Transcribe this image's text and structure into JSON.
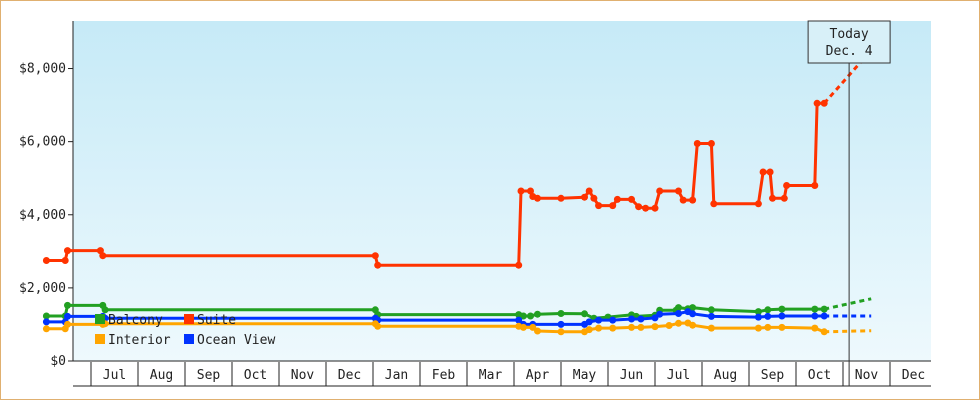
{
  "chart_data": {
    "type": "line",
    "ylim": [
      0,
      9300
    ],
    "y_ticks": [
      {
        "value": 0,
        "label": "$0"
      },
      {
        "value": 2000,
        "label": "$2,000"
      },
      {
        "value": 4000,
        "label": "$4,000"
      },
      {
        "value": 6000,
        "label": "$6,000"
      },
      {
        "value": 8000,
        "label": "$8,000"
      }
    ],
    "months": [
      "Jul",
      "Aug",
      "Sep",
      "Oct",
      "Nov",
      "Dec",
      "Jan",
      "Feb",
      "Mar",
      "Apr",
      "May",
      "Jun",
      "Jul",
      "Aug",
      "Sep",
      "Oct",
      "Nov",
      "Dec"
    ],
    "x_unit": "months since start of first month shown (Jun)",
    "today": {
      "line1": "Today",
      "line2": "Dec. 4",
      "x": 17.13
    },
    "legend": [
      {
        "name": "Balcony",
        "color": "#22a022"
      },
      {
        "name": "Suite",
        "color": "#ff3300"
      },
      {
        "name": "Interior",
        "color": "#ffa500"
      },
      {
        "name": "Ocean View",
        "color": "#0033ff"
      }
    ],
    "series": [
      {
        "name": "Suite",
        "color": "#ff3300",
        "points": [
          [
            0.05,
            2750
          ],
          [
            0.45,
            2750
          ],
          [
            0.5,
            3020
          ],
          [
            1.2,
            3020
          ],
          [
            1.25,
            2880
          ],
          [
            7.05,
            2880
          ],
          [
            7.1,
            2620
          ],
          [
            10.1,
            2620
          ],
          [
            10.15,
            4650
          ],
          [
            10.35,
            4650
          ],
          [
            10.4,
            4500
          ],
          [
            10.5,
            4450
          ],
          [
            11.0,
            4450
          ],
          [
            11.5,
            4480
          ],
          [
            11.6,
            4650
          ],
          [
            11.7,
            4450
          ],
          [
            11.8,
            4250
          ],
          [
            12.1,
            4250
          ],
          [
            12.2,
            4420
          ],
          [
            12.5,
            4420
          ],
          [
            12.65,
            4220
          ],
          [
            12.8,
            4180
          ],
          [
            13.0,
            4180
          ],
          [
            13.1,
            4650
          ],
          [
            13.5,
            4650
          ],
          [
            13.6,
            4400
          ],
          [
            13.8,
            4400
          ],
          [
            13.9,
            5950
          ],
          [
            14.2,
            5950
          ],
          [
            14.25,
            4300
          ],
          [
            15.2,
            4300
          ],
          [
            15.3,
            5170
          ],
          [
            15.45,
            5170
          ],
          [
            15.5,
            4450
          ],
          [
            15.75,
            4450
          ],
          [
            15.8,
            4800
          ],
          [
            16.4,
            4800
          ],
          [
            16.45,
            7050
          ],
          [
            16.6,
            7050
          ]
        ],
        "forecast": [
          [
            16.6,
            7050
          ],
          [
            17.6,
            8500
          ]
        ]
      },
      {
        "name": "Balcony",
        "color": "#22a022",
        "points": [
          [
            0.05,
            1230
          ],
          [
            0.45,
            1230
          ],
          [
            0.5,
            1520
          ],
          [
            1.25,
            1520
          ],
          [
            1.3,
            1400
          ],
          [
            7.05,
            1400
          ],
          [
            7.1,
            1270
          ],
          [
            10.1,
            1270
          ],
          [
            10.2,
            1230
          ],
          [
            10.35,
            1230
          ],
          [
            10.5,
            1280
          ],
          [
            11.0,
            1300
          ],
          [
            11.5,
            1290
          ],
          [
            11.7,
            1170
          ],
          [
            12.0,
            1200
          ],
          [
            12.5,
            1260
          ],
          [
            12.6,
            1220
          ],
          [
            13.0,
            1250
          ],
          [
            13.1,
            1390
          ],
          [
            13.45,
            1390
          ],
          [
            13.5,
            1460
          ],
          [
            13.7,
            1430
          ],
          [
            13.8,
            1460
          ],
          [
            14.2,
            1400
          ],
          [
            15.2,
            1350
          ],
          [
            15.4,
            1400
          ],
          [
            15.7,
            1420
          ],
          [
            16.4,
            1420
          ],
          [
            16.6,
            1420
          ]
        ],
        "forecast": [
          [
            16.6,
            1420
          ],
          [
            17.6,
            1700
          ]
        ]
      },
      {
        "name": "Ocean View",
        "color": "#0033ff",
        "points": [
          [
            0.05,
            1070
          ],
          [
            0.45,
            1070
          ],
          [
            0.5,
            1220
          ],
          [
            1.25,
            1220
          ],
          [
            1.3,
            1170
          ],
          [
            7.05,
            1170
          ],
          [
            7.1,
            1120
          ],
          [
            10.1,
            1120
          ],
          [
            10.2,
            1000
          ],
          [
            10.4,
            1000
          ],
          [
            11.0,
            1000
          ],
          [
            11.5,
            1000
          ],
          [
            11.6,
            1070
          ],
          [
            11.8,
            1120
          ],
          [
            12.1,
            1120
          ],
          [
            12.5,
            1150
          ],
          [
            12.7,
            1150
          ],
          [
            13.0,
            1180
          ],
          [
            13.1,
            1280
          ],
          [
            13.5,
            1300
          ],
          [
            13.7,
            1350
          ],
          [
            13.8,
            1290
          ],
          [
            14.2,
            1220
          ],
          [
            15.2,
            1200
          ],
          [
            15.4,
            1220
          ],
          [
            15.7,
            1230
          ],
          [
            16.4,
            1230
          ],
          [
            16.6,
            1230
          ]
        ],
        "forecast": [
          [
            16.6,
            1230
          ],
          [
            17.6,
            1230
          ]
        ]
      },
      {
        "name": "Interior",
        "color": "#ffa500",
        "points": [
          [
            0.05,
            880
          ],
          [
            0.45,
            880
          ],
          [
            0.5,
            1000
          ],
          [
            1.25,
            1000
          ],
          [
            1.3,
            1020
          ],
          [
            7.05,
            1020
          ],
          [
            7.1,
            950
          ],
          [
            10.1,
            950
          ],
          [
            10.2,
            920
          ],
          [
            10.4,
            920
          ],
          [
            10.5,
            820
          ],
          [
            11.0,
            800
          ],
          [
            11.5,
            800
          ],
          [
            11.6,
            860
          ],
          [
            11.8,
            900
          ],
          [
            12.1,
            900
          ],
          [
            12.5,
            920
          ],
          [
            12.7,
            920
          ],
          [
            13.0,
            940
          ],
          [
            13.3,
            970
          ],
          [
            13.5,
            1030
          ],
          [
            13.7,
            1040
          ],
          [
            13.8,
            980
          ],
          [
            14.2,
            900
          ],
          [
            15.2,
            900
          ],
          [
            15.4,
            920
          ],
          [
            15.7,
            920
          ],
          [
            16.4,
            900
          ],
          [
            16.6,
            800
          ]
        ],
        "forecast": [
          [
            16.6,
            800
          ],
          [
            17.6,
            830
          ]
        ]
      }
    ]
  }
}
